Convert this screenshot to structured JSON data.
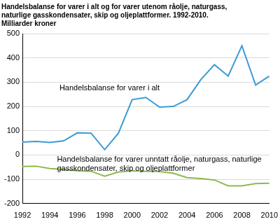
{
  "chart_data": {
    "type": "line",
    "title": [
      "Handelsbalanse for varer i alt og for varer utenom råolje, naturgass,",
      "naturlige gasskondensater, skip og oljeplattformer. 1992-2010."
    ],
    "subtitle": "Milliarder kroner",
    "x": [
      1992,
      1993,
      1994,
      1995,
      1996,
      1997,
      1998,
      1999,
      2000,
      2001,
      2002,
      2003,
      2004,
      2005,
      2006,
      2007,
      2008,
      2009,
      2010
    ],
    "series": [
      {
        "name": "Handelsbalanse for varer i alt",
        "color": "#3a9ad6",
        "values": [
          53,
          56,
          52,
          58,
          91,
          90,
          22,
          90,
          228,
          237,
          197,
          200,
          228,
          310,
          372,
          325,
          450,
          288,
          325
        ]
      },
      {
        "name": "Handelsbalanse for varer unntatt råolje, naturgass, naturlige gasskondensater, skip og oljeplattformer",
        "color": "#8cba4c",
        "values": [
          -47,
          -46,
          -56,
          -59,
          -65,
          -67,
          -87,
          -70,
          -65,
          -67,
          -68,
          -75,
          -93,
          -97,
          -103,
          -127,
          -127,
          -118,
          -116
        ]
      }
    ],
    "xlim": [
      1992,
      2010
    ],
    "xticks": [
      1992,
      1994,
      1996,
      1998,
      2000,
      2002,
      2004,
      2006,
      2008,
      2010
    ],
    "ylim": [
      -200,
      500
    ],
    "yticks": [
      -200,
      -100,
      0,
      100,
      200,
      300,
      400,
      500
    ],
    "grid": true
  }
}
